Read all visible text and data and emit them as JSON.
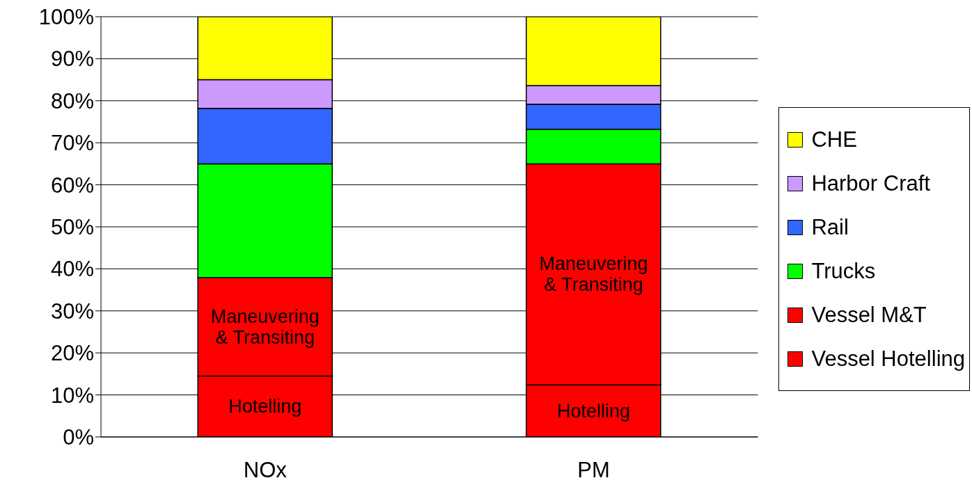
{
  "chart_data": {
    "type": "bar",
    "stacked": true,
    "categories": [
      "NOx",
      "PM"
    ],
    "series": [
      {
        "name": "Vessel Hotelling",
        "color": "#ff0000",
        "values": [
          14.5,
          12.4
        ]
      },
      {
        "name": "Vessel M&T",
        "color": "#ff0000",
        "values": [
          23.4,
          52.6
        ]
      },
      {
        "name": "Trucks",
        "color": "#00ff00",
        "values": [
          27.1,
          8.2
        ]
      },
      {
        "name": "Rail",
        "color": "#3366ff",
        "values": [
          13.2,
          6.0
        ]
      },
      {
        "name": "Harbor Craft",
        "color": "#cc99ff",
        "values": [
          6.8,
          4.4
        ]
      },
      {
        "name": "CHE",
        "color": "#ffff00",
        "values": [
          15.0,
          16.4
        ]
      }
    ],
    "ylim": [
      0,
      100
    ],
    "yticks": [
      {
        "value": 0,
        "label": "0%"
      },
      {
        "value": 10,
        "label": "10%"
      },
      {
        "value": 20,
        "label": "20%"
      },
      {
        "value": 30,
        "label": "30%"
      },
      {
        "value": 40,
        "label": "40%"
      },
      {
        "value": 50,
        "label": "50%"
      },
      {
        "value": 60,
        "label": "60%"
      },
      {
        "value": 70,
        "label": "70%"
      },
      {
        "value": 80,
        "label": "80%"
      },
      {
        "value": 90,
        "label": "90%"
      },
      {
        "value": 100,
        "label": "100%"
      }
    ],
    "grid": "y",
    "legend": "right",
    "annotations": [
      "Hotelling",
      "Maneuvering & Transiting",
      "Hotelling",
      "Maneuvering & Transiting"
    ]
  }
}
